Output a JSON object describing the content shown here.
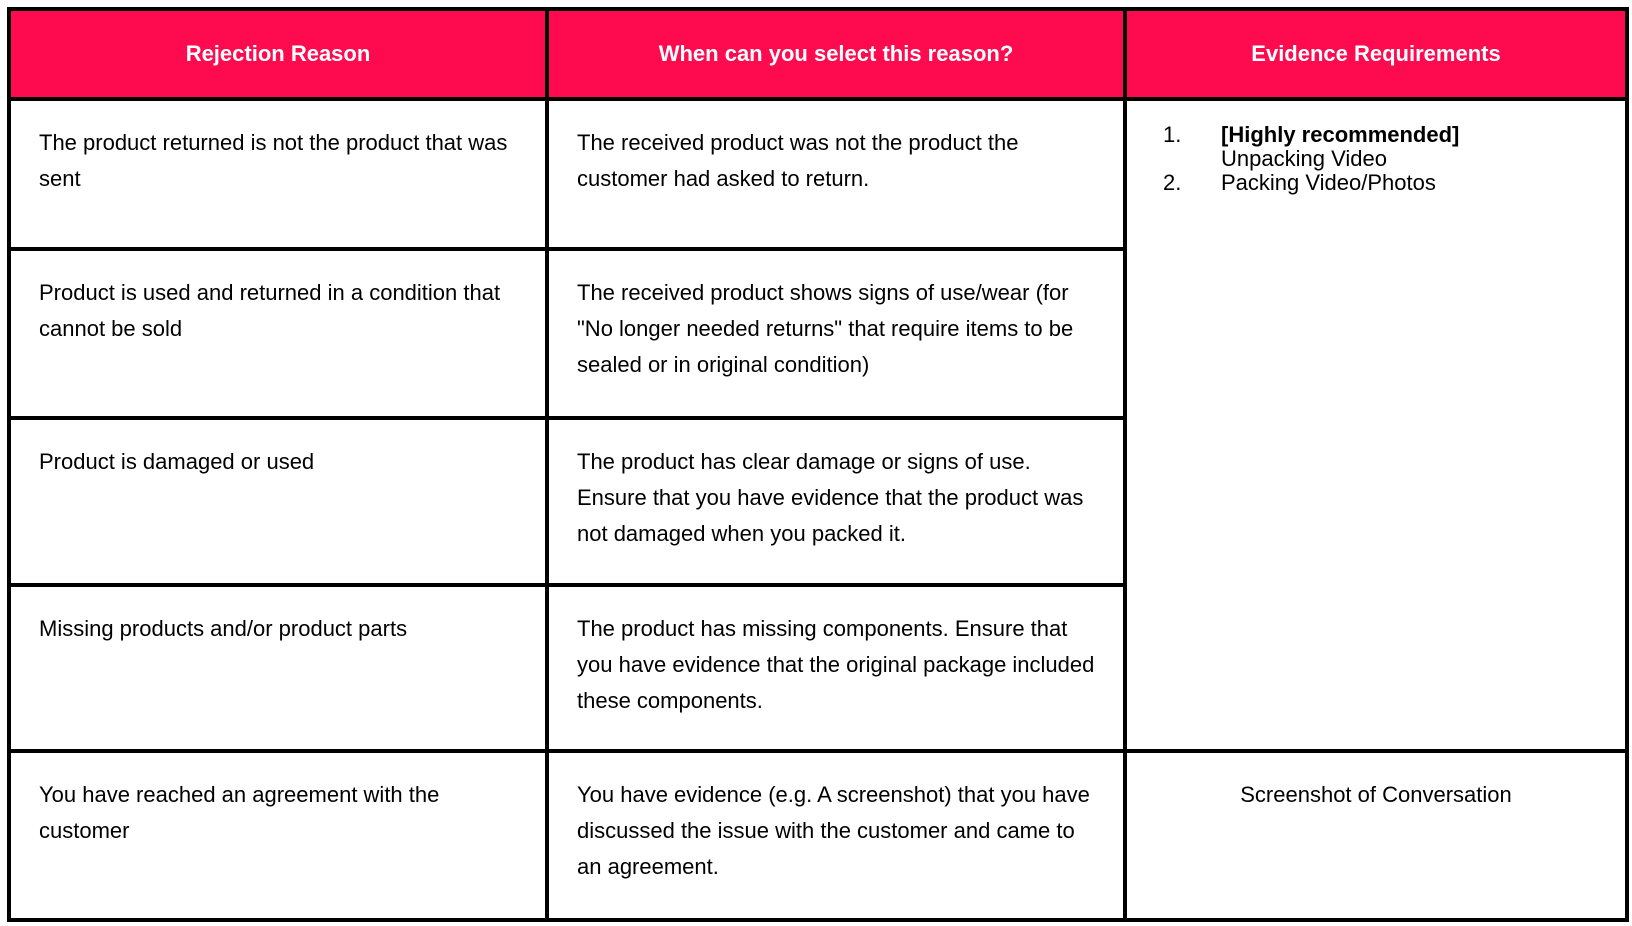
{
  "table": {
    "headers": [
      "Rejection Reason",
      "When can you select this reason?",
      "Evidence Requirements"
    ],
    "rows": [
      {
        "reason": "The product returned is not the product that was sent",
        "when": "The received product was not the product the customer had asked to return."
      },
      {
        "reason": "Product is used and returned in a condition that cannot be sold",
        "when": "The received product shows signs of use/wear (for \"No longer needed returns\" that require items to be sealed or in original condition)"
      },
      {
        "reason": "Product is damaged or used",
        "when": "The product has clear damage or signs of use. Ensure that you have evidence that the product was not damaged when you packed it."
      },
      {
        "reason": "Missing products and/or product parts",
        "when": "The product has missing components. Ensure that you have evidence that the original package included these components."
      },
      {
        "reason": "You have reached an agreement with the customer",
        "when": "You have evidence (e.g. A screenshot) that you have discussed the issue with the customer and came to an agreement."
      }
    ],
    "evidence_group": {
      "items": [
        {
          "number": "1.",
          "bold": "[Highly recommended]",
          "text": "Unpacking Video"
        },
        {
          "number": "2.",
          "bold": "",
          "text": "Packing Video/Photos"
        }
      ]
    },
    "evidence_last": "Screenshot of Conversation"
  },
  "colors": {
    "header_bg": "#fe0a4f",
    "header_text": "#ffffff",
    "border": "#000000"
  }
}
